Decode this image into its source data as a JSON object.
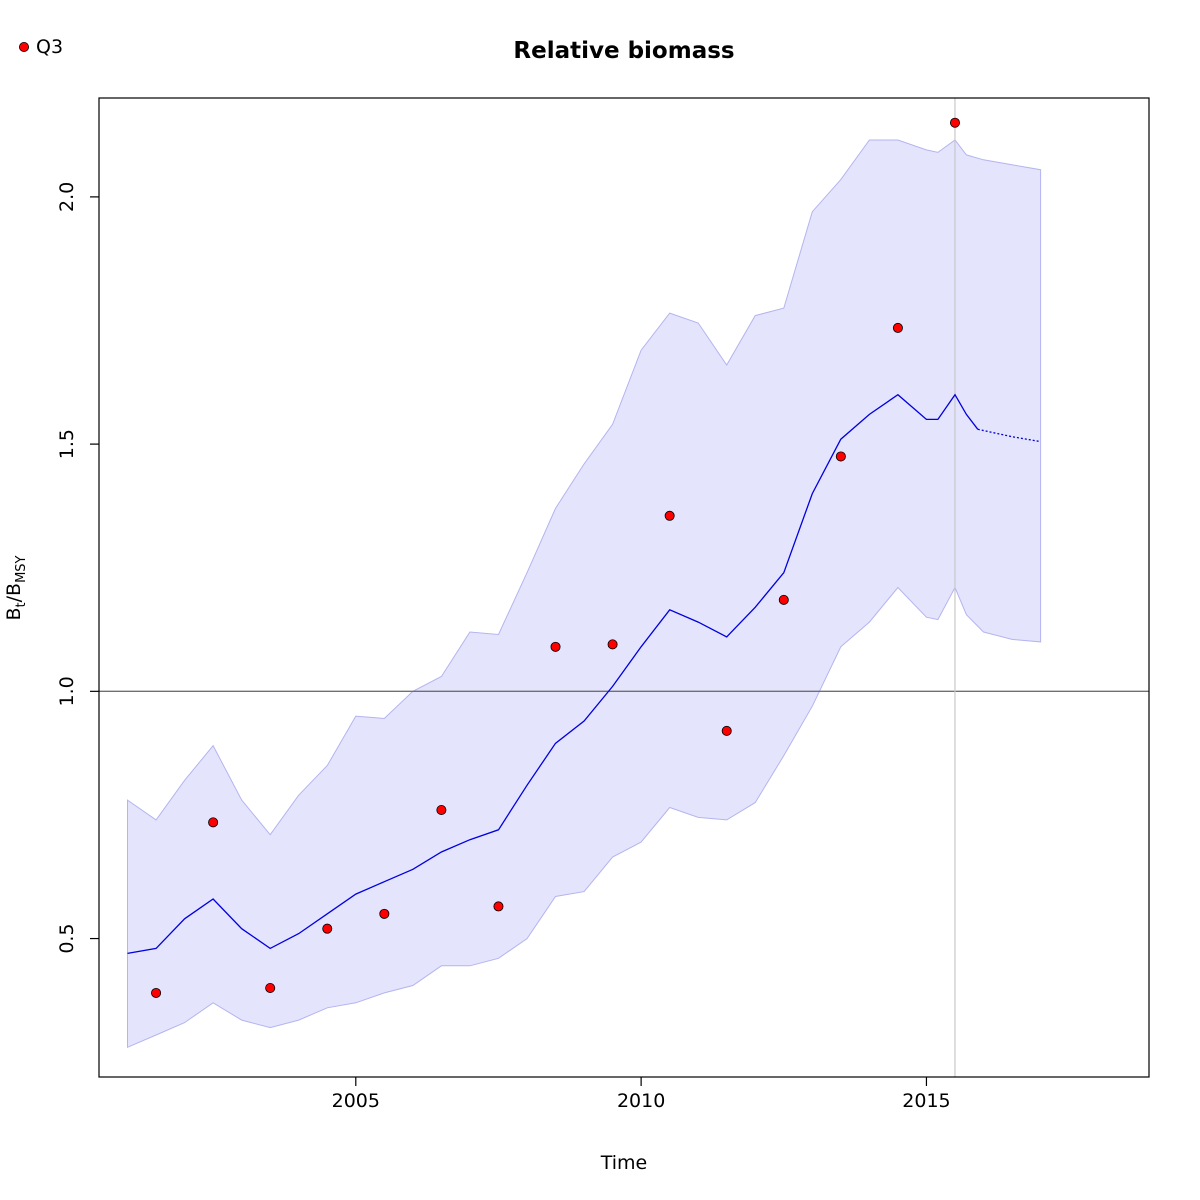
{
  "chart_data": {
    "type": "line",
    "title": "Relative biomass",
    "xlabel": "Time",
    "ylabel_main": "B",
    "ylabel_sub1": "t",
    "ylabel_sep": "/B",
    "ylabel_sub2": "MSY",
    "xlim": [
      2000.5,
      2018.9
    ],
    "ylim": [
      0.22,
      2.2
    ],
    "xticks": [
      2005,
      2010,
      2015
    ],
    "yticks": [
      0.5,
      1.0,
      1.5,
      2.0
    ],
    "xtick_labels": [
      "2005",
      "2010",
      "2015"
    ],
    "ytick_labels": [
      "0.5",
      "1.0",
      "1.5",
      "2.0"
    ],
    "grid": false,
    "reference_line_y": 1.0,
    "vertical_line_x": 2015.5,
    "legend": {
      "position": "top-left",
      "label": "Q3"
    },
    "colors": {
      "line": "#0000e0",
      "band": "#e4e4fc",
      "band_edge": "#b4b4f0",
      "points": "#ff0000",
      "refline": "#707070",
      "vline": "#c8c8c8"
    },
    "series": [
      {
        "name": "Q3",
        "kind": "points",
        "x": [
          2001.5,
          2002.5,
          2003.5,
          2004.5,
          2005.5,
          2006.5,
          2007.5,
          2008.5,
          2009.5,
          2010.5,
          2011.5,
          2012.5,
          2013.5,
          2014.5,
          2015.5
        ],
        "y": [
          0.39,
          0.735,
          0.4,
          0.52,
          0.55,
          0.76,
          0.565,
          1.09,
          1.095,
          1.355,
          0.92,
          1.185,
          1.475,
          1.735,
          2.15
        ]
      },
      {
        "kind": "estimate",
        "x": [
          2001.0,
          2001.5,
          2002.0,
          2002.5,
          2003.0,
          2003.5,
          2004.0,
          2004.5,
          2005.0,
          2005.5,
          2006.0,
          2006.5,
          2007.0,
          2007.5,
          2008.0,
          2008.5,
          2009.0,
          2009.5,
          2010.0,
          2010.5,
          2011.0,
          2011.5,
          2012.0,
          2012.5,
          2013.0,
          2013.5,
          2014.0,
          2014.5,
          2015.0,
          2015.2,
          2015.5,
          2015.7,
          2015.9
        ],
        "y": [
          0.47,
          0.48,
          0.54,
          0.58,
          0.52,
          0.48,
          0.51,
          0.55,
          0.59,
          0.615,
          0.64,
          0.675,
          0.7,
          0.72,
          0.81,
          0.895,
          0.94,
          1.01,
          1.09,
          1.165,
          1.14,
          1.11,
          1.17,
          1.24,
          1.4,
          1.51,
          1.56,
          1.6,
          1.55,
          1.55,
          1.6,
          1.56,
          1.53
        ]
      },
      {
        "kind": "forecast",
        "x": [
          2015.9,
          2016.5,
          2017.0
        ],
        "y": [
          1.53,
          1.515,
          1.505
        ]
      }
    ],
    "band": {
      "x": [
        2001.0,
        2001.5,
        2002.0,
        2002.5,
        2003.0,
        2003.5,
        2004.0,
        2004.5,
        2005.0,
        2005.5,
        2006.0,
        2006.5,
        2007.0,
        2007.5,
        2008.0,
        2008.5,
        2009.0,
        2009.5,
        2010.0,
        2010.5,
        2011.0,
        2011.5,
        2012.0,
        2012.5,
        2013.0,
        2013.5,
        2014.0,
        2014.5,
        2015.0,
        2015.2,
        2015.5,
        2015.7,
        2016.0,
        2016.5,
        2017.0
      ],
      "upper": [
        0.78,
        0.74,
        0.82,
        0.89,
        0.78,
        0.71,
        0.79,
        0.85,
        0.95,
        0.945,
        1.0,
        1.03,
        1.12,
        1.115,
        1.24,
        1.37,
        1.46,
        1.54,
        1.69,
        1.765,
        1.745,
        1.66,
        1.76,
        1.775,
        1.97,
        2.035,
        2.115,
        2.115,
        2.095,
        2.09,
        2.115,
        2.085,
        2.075,
        2.065,
        2.055
      ],
      "lower": [
        0.28,
        0.305,
        0.33,
        0.37,
        0.335,
        0.32,
        0.335,
        0.36,
        0.37,
        0.39,
        0.405,
        0.445,
        0.445,
        0.46,
        0.5,
        0.585,
        0.595,
        0.665,
        0.695,
        0.765,
        0.745,
        0.74,
        0.775,
        0.87,
        0.97,
        1.09,
        1.14,
        1.21,
        1.15,
        1.145,
        1.21,
        1.155,
        1.12,
        1.105,
        1.1
      ]
    }
  }
}
